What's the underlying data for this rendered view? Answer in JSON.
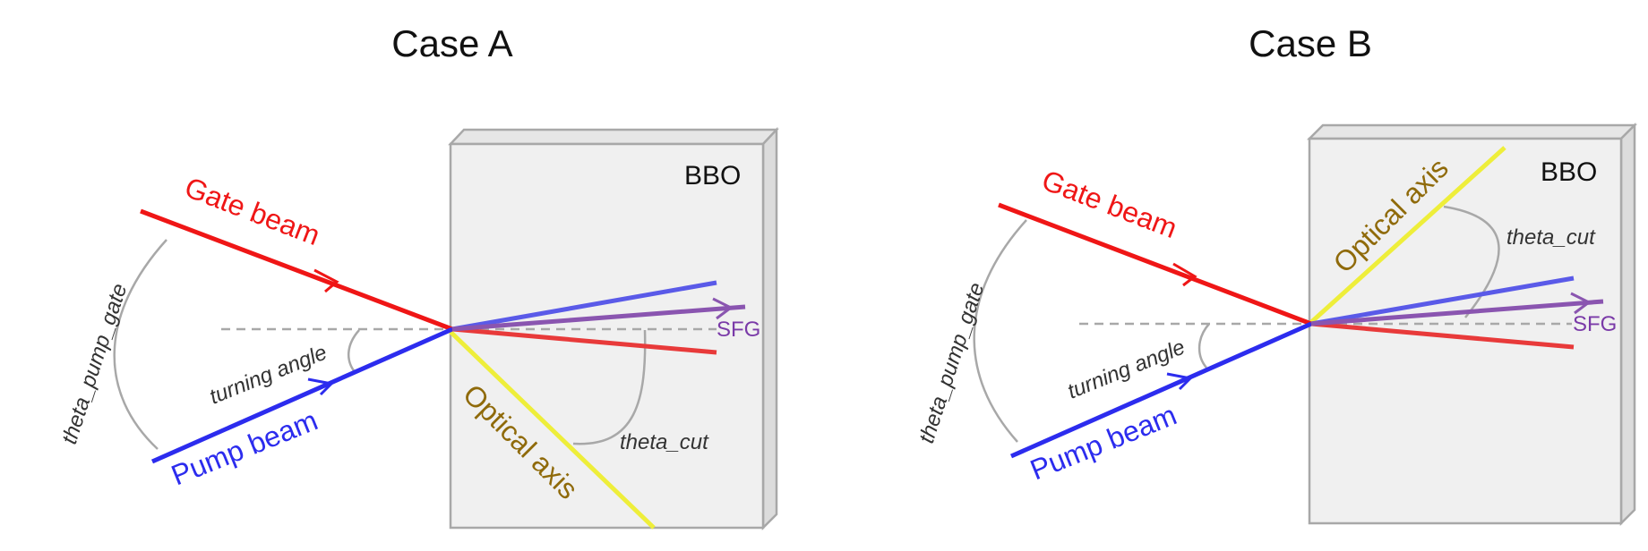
{
  "colors": {
    "gate": "#ef1616",
    "pump": "#2c2cee",
    "pump_out": "#5a5ae8",
    "gate_out": "#e83a3a",
    "sfg": "#8a55b0",
    "sfg_text": "#7a3aa8",
    "optical_axis": "#eeee3a",
    "optical_axis_text": "#8f6a0a",
    "crystal_fill": "#f0f0f0",
    "crystal_edge": "#a8a8a8",
    "angle_arc": "#a8a8a8"
  },
  "panels": [
    {
      "title": "Case A",
      "crystal_label": "BBO",
      "gate_label": "Gate beam",
      "pump_label": "Pump beam",
      "sfg_label": "SFG",
      "axis_label": "Optical axis",
      "angle_pump_gate": "theta_pump_gate",
      "angle_turning": "turning angle",
      "angle_cut": "theta_cut"
    },
    {
      "title": "Case B",
      "crystal_label": "BBO",
      "gate_label": "Gate beam",
      "pump_label": "Pump beam",
      "sfg_label": "SFG",
      "axis_label": "Optical axis",
      "angle_pump_gate": "theta_pump_gate",
      "angle_turning": "turning angle",
      "angle_cut": "theta_cut"
    }
  ]
}
